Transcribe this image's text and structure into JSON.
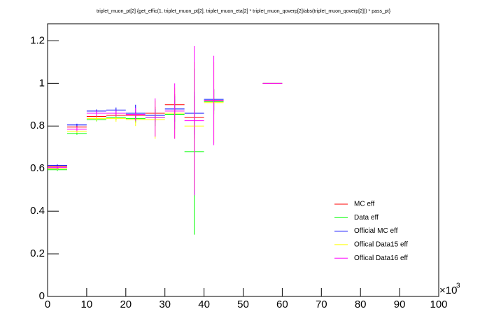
{
  "chart_data": {
    "type": "errorbar",
    "title": "triplet_muon_pt[2]  {get_effic(1, triplet_muon_pt[2], triplet_muon_eta[2] * triplet_muon_qoverp[2]/abs(triplet_muon_qoverp[2])) * pass_pt}",
    "x": [
      2.5,
      7.5,
      12.5,
      17.5,
      22.5,
      27.5,
      32.5,
      37.5,
      42.5,
      57.5
    ],
    "xlim": [
      0,
      100
    ],
    "xticks": [
      0,
      10,
      20,
      30,
      40,
      50,
      60,
      70,
      80,
      90,
      100
    ],
    "x_scale_label": "×10",
    "x_scale_exponent": "3",
    "ylim": [
      0,
      1.28
    ],
    "yticks": [
      0,
      0.2,
      0.4,
      0.6,
      0.8,
      1,
      1.2
    ],
    "series": [
      {
        "name": "MC eff",
        "color": "#ff0000",
        "values": [
          0.61,
          0.795,
          0.845,
          0.85,
          0.85,
          0.86,
          0.9,
          0.84,
          0.92,
          1.0
        ],
        "errors": [
          0.005,
          0.005,
          0.006,
          0.01,
          0.015,
          0.03,
          0.05,
          0.1,
          0.05,
          0
        ]
      },
      {
        "name": "Data eff",
        "color": "#00ff00",
        "values": [
          0.595,
          0.765,
          0.83,
          0.84,
          0.835,
          0.84,
          0.855,
          0.68,
          0.915,
          1.0
        ],
        "errors": [
          0.006,
          0.006,
          0.008,
          0.012,
          0.02,
          0.04,
          0.07,
          0.39,
          0.06,
          0
        ]
      },
      {
        "name": "Official MC eff",
        "color": "#0000ff",
        "values": [
          0.615,
          0.805,
          0.87,
          0.875,
          0.86,
          0.85,
          0.88,
          0.86,
          0.925,
          1.0
        ],
        "errors": [
          0.005,
          0.006,
          0.008,
          0.012,
          0.04,
          0.03,
          0.06,
          0.1,
          0.05,
          0
        ]
      },
      {
        "name": "Offical Data15 eff",
        "color": "#ffff00",
        "values": [
          0.6,
          0.775,
          0.835,
          0.835,
          0.83,
          0.83,
          0.86,
          0.8,
          0.91,
          1.0
        ],
        "errors": [
          0.006,
          0.008,
          0.01,
          0.015,
          0.03,
          0.09,
          0.12,
          0.3,
          0.19,
          0
        ]
      },
      {
        "name": "Offical Data16 eff",
        "color": "#ff00ff",
        "values": [
          0.605,
          0.785,
          0.86,
          0.86,
          0.855,
          0.84,
          0.87,
          0.825,
          0.92,
          1.0
        ],
        "errors": [
          0.008,
          0.01,
          0.012,
          0.015,
          0.03,
          0.09,
          0.13,
          0.35,
          0.21,
          0
        ]
      }
    ]
  }
}
